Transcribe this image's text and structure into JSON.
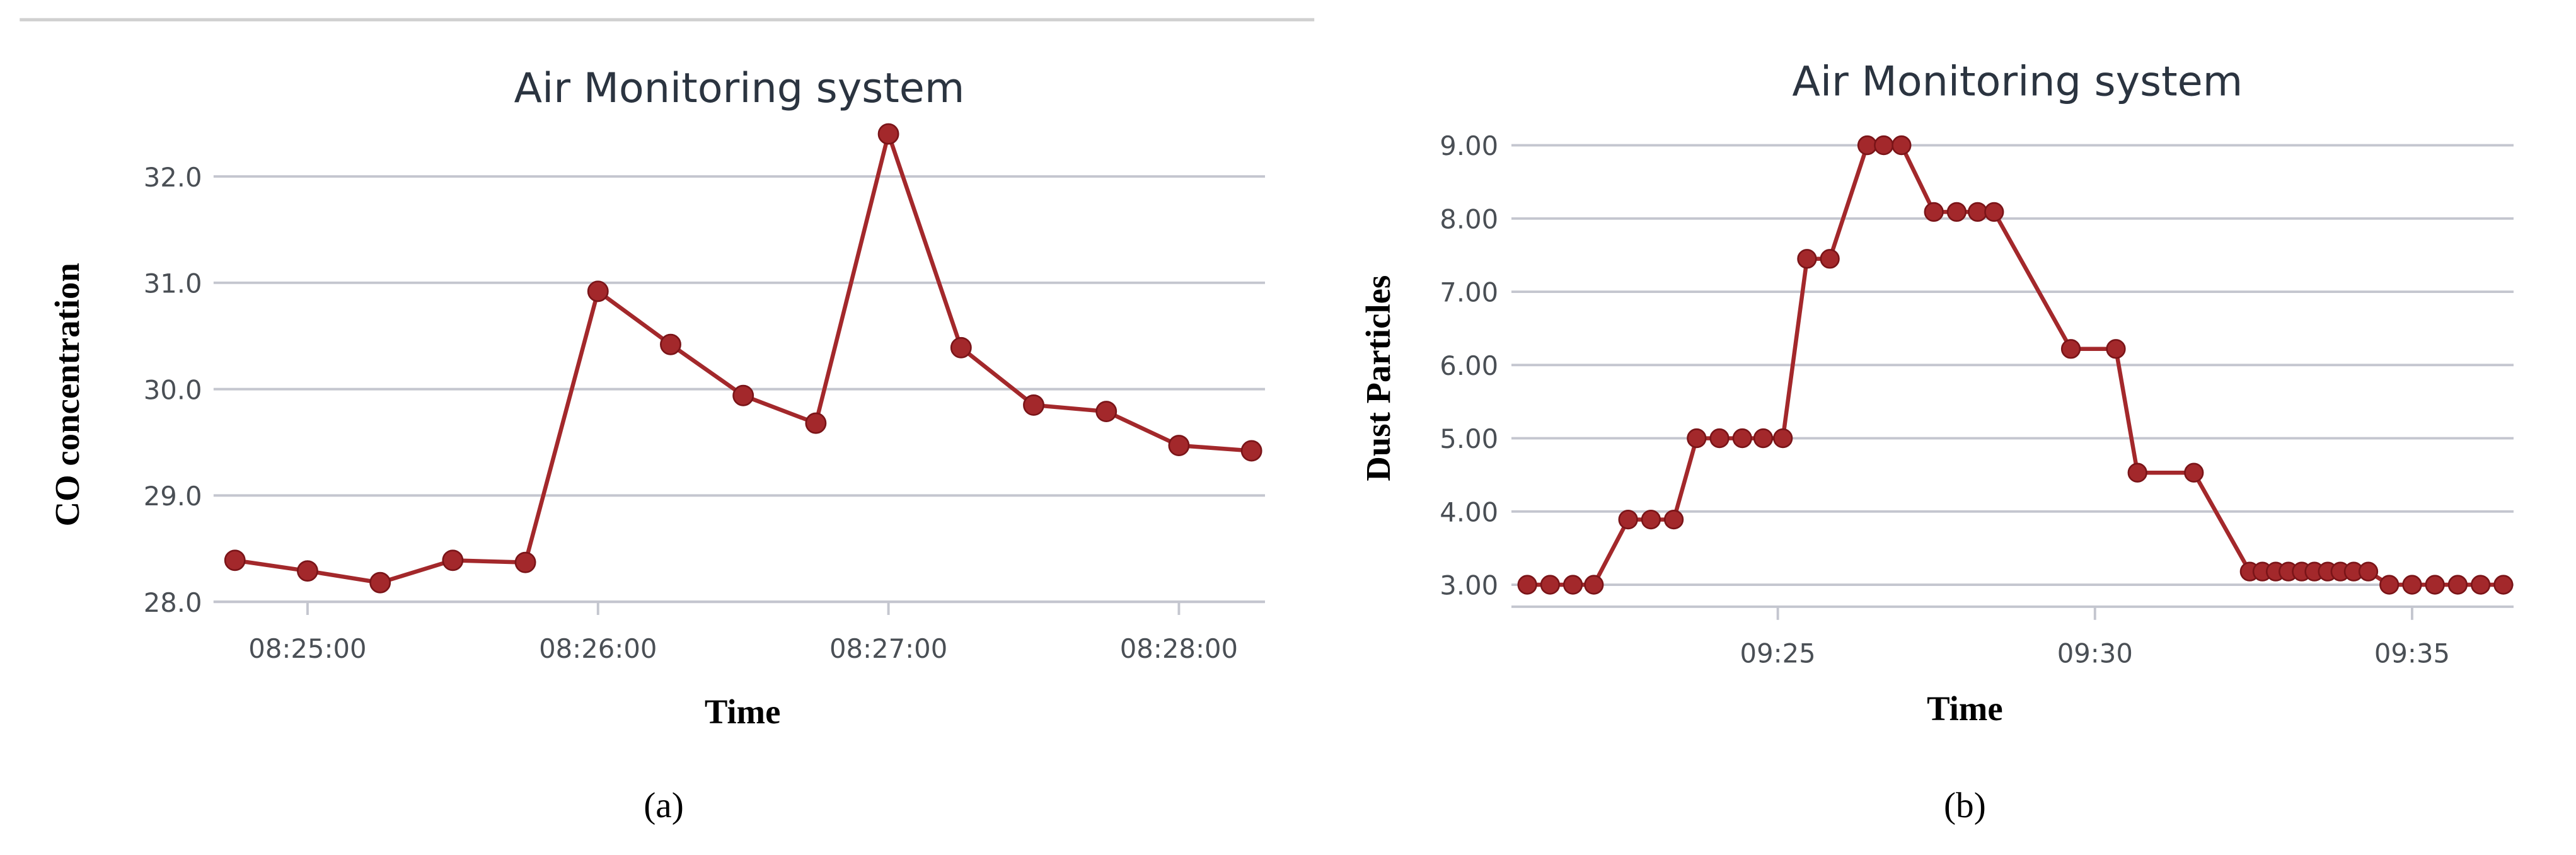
{
  "chart_data": [
    {
      "type": "line",
      "title": "Air Monitoring system",
      "x_label": "Time",
      "y_label": "CO concentration",
      "caption": "(a)",
      "categories": [
        null,
        "08:25:00",
        null,
        null,
        null,
        "08:26:00",
        null,
        null,
        null,
        "08:27:00",
        null,
        null,
        null,
        "08:28:00",
        null
      ],
      "values": [
        28.39,
        28.29,
        28.18,
        28.39,
        28.37,
        30.92,
        30.42,
        29.94,
        29.68,
        32.4,
        30.39,
        29.85,
        29.79,
        29.47,
        29.42
      ],
      "color": "#a3282b",
      "ylim": [
        28,
        32.5
      ],
      "yticks": [
        {
          "value": 28,
          "label": "28.0"
        },
        {
          "value": 29,
          "label": "29.0"
        },
        {
          "value": 30,
          "label": "30.0"
        },
        {
          "value": 31,
          "label": "31.0"
        },
        {
          "value": 32,
          "label": "32.0"
        }
      ],
      "grid": true
    },
    {
      "type": "line",
      "title": "Air Monitoring system",
      "x_label": "Time",
      "y_label": "Dust Particles",
      "caption": "(b)",
      "x": [
        21.05,
        21.41,
        21.77,
        22.1,
        22.64,
        23.0,
        23.36,
        23.72,
        24.08,
        24.44,
        24.77,
        25.08,
        25.46,
        25.82,
        26.41,
        26.67,
        26.95,
        27.46,
        27.82,
        28.15,
        28.41,
        29.62,
        30.33,
        30.67,
        31.56,
        32.44,
        32.64,
        32.85,
        33.05,
        33.26,
        33.46,
        33.67,
        33.87,
        34.08,
        34.31,
        34.64,
        35.0,
        35.36,
        35.72,
        36.08,
        36.44
      ],
      "values": [
        3.0,
        3.0,
        3.0,
        3.0,
        3.89,
        3.89,
        3.89,
        5.0,
        5.0,
        5.0,
        5.0,
        5.0,
        7.45,
        7.45,
        9.0,
        9.0,
        9.0,
        8.09,
        8.09,
        8.09,
        8.09,
        6.22,
        6.22,
        4.53,
        4.53,
        3.18,
        3.18,
        3.18,
        3.18,
        3.18,
        3.18,
        3.18,
        3.18,
        3.18,
        3.18,
        3.0,
        3.0,
        3.0,
        3.0,
        3.0,
        3.0
      ],
      "color": "#a3282b",
      "xlim": [
        20.8,
        36.6
      ],
      "xticks": [
        {
          "value": 25,
          "label": "09:25"
        },
        {
          "value": 30,
          "label": "09:30"
        },
        {
          "value": 35,
          "label": "09:35"
        }
      ],
      "ylim": [
        2.7,
        9.3
      ],
      "yticks": [
        {
          "value": 3,
          "label": "3.00"
        },
        {
          "value": 4,
          "label": "4.00"
        },
        {
          "value": 5,
          "label": "5.00"
        },
        {
          "value": 6,
          "label": "6.00"
        },
        {
          "value": 7,
          "label": "7.00"
        },
        {
          "value": 8,
          "label": "8.00"
        },
        {
          "value": 9,
          "label": "9.00"
        }
      ],
      "grid": true
    }
  ]
}
